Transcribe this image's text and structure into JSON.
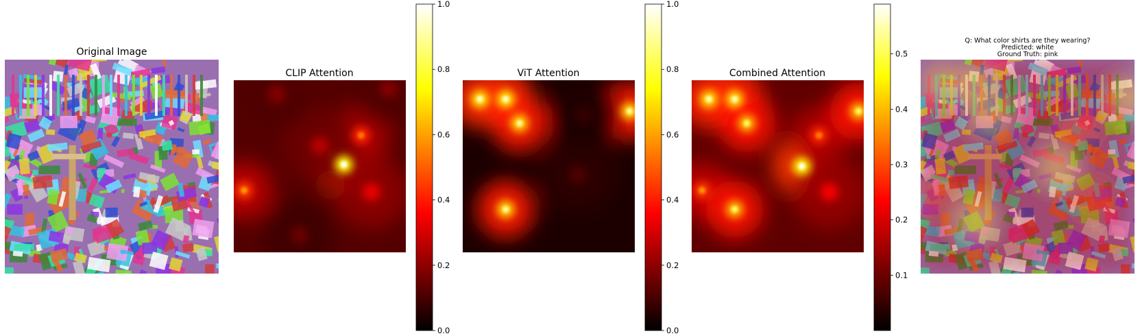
{
  "figure": {
    "panels": [
      {
        "title": "Original Image"
      },
      {
        "title": "CLIP Attention"
      },
      {
        "title": "ViT Attention"
      },
      {
        "title": "Combined Attention"
      }
    ],
    "overlay": {
      "question": "Q: What color shirts are they wearing?",
      "predicted": "Predicted: white",
      "ground_truth": "Ground Truth: pink"
    }
  },
  "colors": {
    "colormap": "hot",
    "stops": [
      "#000000",
      "#ff0000",
      "#ffff00",
      "#ffffff"
    ]
  },
  "chart_data": [
    {
      "type": "heatmap",
      "title": "Original Image",
      "description_values": "psychedelic rainbow-colored source image (no numeric scale)"
    },
    {
      "type": "heatmap",
      "title": "CLIP Attention",
      "colormap": "hot",
      "colorbar": {
        "min": 0.0,
        "max": 1.0,
        "ticks": [
          0.0,
          0.2,
          0.4,
          0.6,
          0.8,
          1.0
        ],
        "tick_labels": [
          "0.0",
          "0.2",
          "0.4",
          "0.6",
          "0.8",
          "1.0"
        ]
      },
      "hotspots": [
        {
          "x": 0.64,
          "y": 0.49,
          "value": 1.0
        },
        {
          "x": 0.74,
          "y": 0.32,
          "value": 0.55
        },
        {
          "x": 0.8,
          "y": 0.65,
          "value": 0.45
        },
        {
          "x": 0.06,
          "y": 0.64,
          "value": 0.6
        },
        {
          "x": 0.5,
          "y": 0.38,
          "value": 0.35
        },
        {
          "x": 0.25,
          "y": 0.08,
          "value": 0.25
        },
        {
          "x": 0.9,
          "y": 0.05,
          "value": 0.25
        },
        {
          "x": 0.38,
          "y": 0.9,
          "value": 0.2
        }
      ],
      "background": 0.12
    },
    {
      "type": "heatmap",
      "title": "ViT Attention",
      "colormap": "hot",
      "colorbar": {
        "min": 0.0,
        "max": 1.0,
        "ticks": [
          0.0,
          0.2,
          0.4,
          0.6,
          0.8,
          1.0
        ],
        "tick_labels": [
          "0.0",
          "0.2",
          "0.4",
          "0.6",
          "0.8",
          "1.0"
        ]
      },
      "hotspots": [
        {
          "x": 0.1,
          "y": 0.11,
          "value": 0.95
        },
        {
          "x": 0.25,
          "y": 0.11,
          "value": 0.95
        },
        {
          "x": 0.33,
          "y": 0.25,
          "value": 0.9
        },
        {
          "x": 0.97,
          "y": 0.18,
          "value": 0.9
        },
        {
          "x": 0.25,
          "y": 0.75,
          "value": 0.9
        },
        {
          "x": 0.67,
          "y": 0.55,
          "value": 0.15
        },
        {
          "x": 0.7,
          "y": 0.2,
          "value": 0.1
        }
      ],
      "background": 0.04
    },
    {
      "type": "heatmap",
      "title": "Combined Attention",
      "colormap": "hot",
      "colorbar": {
        "min": 0.0,
        "max": 0.59,
        "ticks": [
          0.1,
          0.2,
          0.3,
          0.4,
          0.5
        ],
        "tick_labels": [
          "0.1",
          "0.2",
          "0.3",
          "0.4",
          "0.5"
        ]
      },
      "hotspots": [
        {
          "x": 0.64,
          "y": 0.5,
          "value": 0.59
        },
        {
          "x": 0.74,
          "y": 0.32,
          "value": 0.33
        },
        {
          "x": 0.8,
          "y": 0.65,
          "value": 0.28
        },
        {
          "x": 0.06,
          "y": 0.64,
          "value": 0.35
        },
        {
          "x": 0.1,
          "y": 0.11,
          "value": 0.55
        },
        {
          "x": 0.25,
          "y": 0.11,
          "value": 0.55
        },
        {
          "x": 0.32,
          "y": 0.25,
          "value": 0.5
        },
        {
          "x": 0.97,
          "y": 0.18,
          "value": 0.5
        },
        {
          "x": 0.25,
          "y": 0.75,
          "value": 0.5
        }
      ],
      "background": 0.08
    },
    {
      "type": "heatmap",
      "title": "",
      "description_values": "original image overlaid with combined attention"
    }
  ]
}
